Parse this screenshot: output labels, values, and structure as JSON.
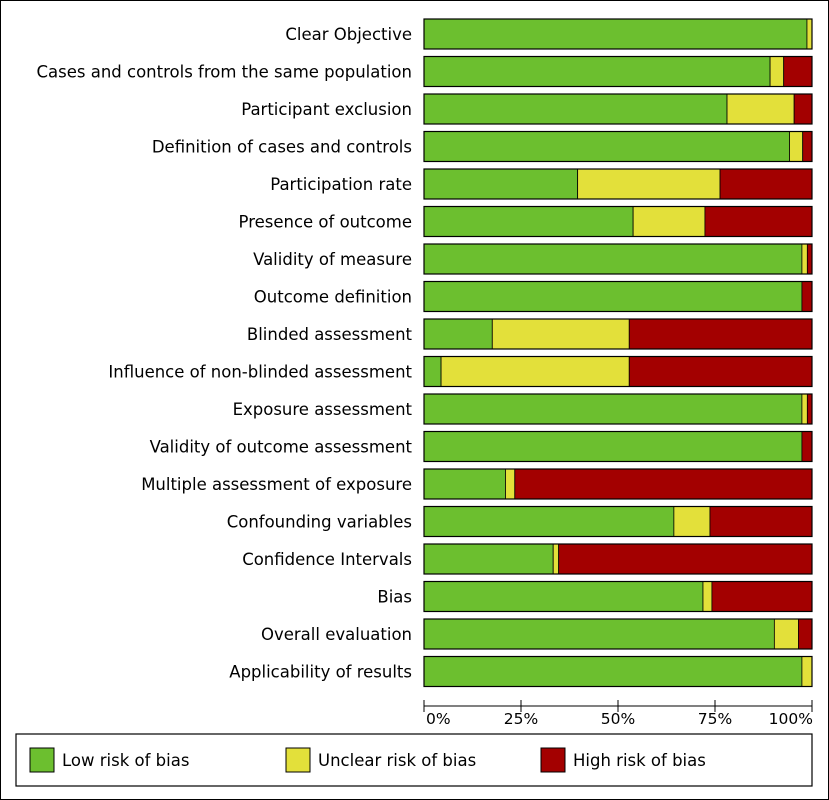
{
  "chart_data": {
    "type": "bar",
    "stacked": true,
    "orientation": "horizontal",
    "title": "",
    "xlabel": "",
    "ylabel": "",
    "xlim": [
      0,
      100
    ],
    "x_ticks": [
      "0%",
      "25%",
      "50%",
      "75%",
      "100%"
    ],
    "categories": [
      "Clear Objective",
      "Cases and controls from the same population",
      "Participant exclusion",
      "Definition of cases and controls",
      "Participation rate",
      "Presence of outcome",
      "Validity of measure",
      "Outcome definition",
      "Blinded assessment",
      "Influence of non-blinded assessment",
      "Exposure assessment",
      "Validity of outcome assessment",
      "Multiple assessment of exposure",
      "Confounding variables",
      "Confidence Intervals",
      "Bias",
      "Overall evaluation",
      "Applicability of results"
    ],
    "series": [
      {
        "name": "Low risk of bias",
        "color": "#6cbf2f",
        "values": [
          98.7,
          89.2,
          78.1,
          94.2,
          39.6,
          53.9,
          97.4,
          97.4,
          17.6,
          4.4,
          97.4,
          97.4,
          21.0,
          64.4,
          33.3,
          71.9,
          90.3,
          97.4
        ]
      },
      {
        "name": "Unclear risk of bias",
        "color": "#e3e03a",
        "values": [
          1.3,
          3.5,
          17.3,
          3.4,
          36.7,
          18.5,
          1.4,
          0.0,
          35.3,
          48.5,
          1.4,
          0.0,
          2.4,
          9.3,
          1.4,
          2.3,
          6.2,
          2.6
        ]
      },
      {
        "name": "High risk of bias",
        "color": "#a30000",
        "values": [
          0.0,
          7.3,
          4.6,
          2.4,
          23.7,
          27.6,
          1.2,
          2.6,
          47.1,
          47.1,
          1.2,
          2.6,
          76.6,
          26.3,
          65.3,
          25.8,
          3.5,
          0.0
        ]
      }
    ],
    "legend_position": "bottom"
  }
}
